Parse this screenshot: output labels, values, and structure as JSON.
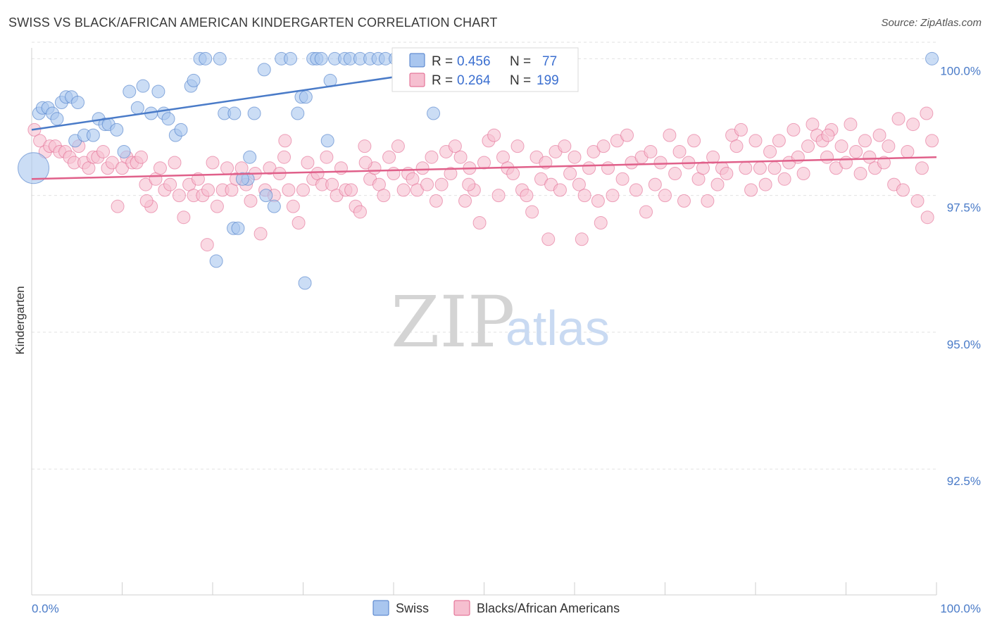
{
  "header": {
    "title": "SWISS VS BLACK/AFRICAN AMERICAN KINDERGARTEN CORRELATION CHART",
    "source": "Source: ZipAtlas.com"
  },
  "watermark": {
    "zip": "ZIP",
    "atlas": "atlas"
  },
  "legend": {
    "swiss": {
      "r_label": "R = ",
      "r_value": "0.456",
      "n_label": "N = ",
      "n_value": "77"
    },
    "black": {
      "r_label": "R = ",
      "r_value": "0.264",
      "n_label": "N = ",
      "n_value": "199"
    }
  },
  "bottom_legend": [
    "Swiss",
    "Blacks/African Americans"
  ],
  "chart_data": {
    "type": "scatter",
    "title": "SWISS VS BLACK/AFRICAN AMERICAN KINDERGARTEN CORRELATION CHART",
    "xlabel": "",
    "ylabel": "Kindergarten",
    "xlim": [
      0,
      100
    ],
    "ylim": [
      90.2,
      100.3
    ],
    "x_tick_labels": [
      "0.0%",
      "100.0%"
    ],
    "y_ticks": [
      100.0,
      97.5,
      95.0,
      92.5
    ],
    "y_tick_labels": [
      "100.0%",
      "97.5%",
      "95.0%",
      "92.5%"
    ],
    "grid": true,
    "colors": {
      "swiss": "#4a7bc8",
      "black": "#e0608a",
      "swiss_fill": "#a9c6ef",
      "black_fill": "#f6bfd0"
    },
    "series": [
      {
        "name": "Swiss",
        "trend": {
          "x": [
            0,
            54
          ],
          "y": [
            98.7,
            100.0
          ]
        },
        "points": [
          [
            0.8,
            99.0
          ],
          [
            1.2,
            99.1
          ],
          [
            1.8,
            99.1
          ],
          [
            2.3,
            99.0
          ],
          [
            2.8,
            98.9
          ],
          [
            3.3,
            99.2
          ],
          [
            3.8,
            99.3
          ],
          [
            4.4,
            99.3
          ],
          [
            5.1,
            99.2
          ],
          [
            4.8,
            98.5
          ],
          [
            5.8,
            98.6
          ],
          [
            6.8,
            98.6
          ],
          [
            7.4,
            98.9
          ],
          [
            8.1,
            98.8
          ],
          [
            8.5,
            98.8
          ],
          [
            9.4,
            98.7
          ],
          [
            10.8,
            99.4
          ],
          [
            11.7,
            99.1
          ],
          [
            10.2,
            98.3
          ],
          [
            12.3,
            99.5
          ],
          [
            13.2,
            99.0
          ],
          [
            14.0,
            99.4
          ],
          [
            14.6,
            99.0
          ],
          [
            15.1,
            98.9
          ],
          [
            15.9,
            98.6
          ],
          [
            16.5,
            98.7
          ],
          [
            17.6,
            99.5
          ],
          [
            17.9,
            99.6
          ],
          [
            18.6,
            100.0
          ],
          [
            19.2,
            100.0
          ],
          [
            20.8,
            100.0
          ],
          [
            21.3,
            99.0
          ],
          [
            22.4,
            99.0
          ],
          [
            24.1,
            98.2
          ],
          [
            23.9,
            97.8
          ],
          [
            23.3,
            97.8
          ],
          [
            22.3,
            96.9
          ],
          [
            20.4,
            96.3
          ],
          [
            24.6,
            99.0
          ],
          [
            25.7,
            99.8
          ],
          [
            25.9,
            97.5
          ],
          [
            26.8,
            97.3
          ],
          [
            27.6,
            100.0
          ],
          [
            28.6,
            100.0
          ],
          [
            29.4,
            99.0
          ],
          [
            29.8,
            99.3
          ],
          [
            30.3,
            99.3
          ],
          [
            31.1,
            100.0
          ],
          [
            31.5,
            100.0
          ],
          [
            32.0,
            100.0
          ],
          [
            32.7,
            98.5
          ],
          [
            33.5,
            100.0
          ],
          [
            34.6,
            100.0
          ],
          [
            35.2,
            100.0
          ],
          [
            36.3,
            100.0
          ],
          [
            37.4,
            100.0
          ],
          [
            38.3,
            100.0
          ],
          [
            39.1,
            100.0
          ],
          [
            40.2,
            100.0
          ],
          [
            41.2,
            100.0
          ],
          [
            42.0,
            100.0
          ],
          [
            43.1,
            100.0
          ],
          [
            44.4,
            99.0
          ],
          [
            45.2,
            100.0
          ],
          [
            46.3,
            100.0
          ],
          [
            47.6,
            100.0
          ],
          [
            49.3,
            100.0
          ],
          [
            51.2,
            100.0
          ],
          [
            52.6,
            100.0
          ],
          [
            53.4,
            100.0
          ],
          [
            54.0,
            100.0
          ],
          [
            30.2,
            95.9
          ],
          [
            22.8,
            96.9
          ],
          [
            44.9,
            100.0
          ],
          [
            33.0,
            99.6
          ],
          [
            0.2,
            98.0
          ],
          [
            99.5,
            100.0
          ]
        ]
      },
      {
        "name": "Blacks/African Americans",
        "trend": {
          "x": [
            0,
            100
          ],
          "y": [
            97.8,
            98.2
          ]
        },
        "points": [
          [
            0.3,
            98.7
          ],
          [
            0.9,
            98.5
          ],
          [
            1.5,
            98.3
          ],
          [
            2.0,
            98.4
          ],
          [
            2.6,
            98.4
          ],
          [
            3.1,
            98.3
          ],
          [
            3.7,
            98.3
          ],
          [
            4.2,
            98.2
          ],
          [
            4.7,
            98.1
          ],
          [
            5.2,
            98.4
          ],
          [
            5.8,
            98.1
          ],
          [
            6.3,
            98.0
          ],
          [
            6.8,
            98.2
          ],
          [
            7.3,
            98.2
          ],
          [
            7.9,
            98.3
          ],
          [
            8.4,
            98.0
          ],
          [
            8.9,
            98.1
          ],
          [
            9.5,
            97.3
          ],
          [
            10.0,
            98.0
          ],
          [
            10.5,
            98.2
          ],
          [
            11.1,
            98.1
          ],
          [
            11.6,
            98.1
          ],
          [
            12.1,
            98.2
          ],
          [
            12.6,
            97.7
          ],
          [
            13.2,
            97.3
          ],
          [
            13.7,
            97.8
          ],
          [
            14.2,
            98.0
          ],
          [
            14.7,
            97.6
          ],
          [
            15.3,
            97.7
          ],
          [
            15.8,
            98.1
          ],
          [
            16.3,
            97.5
          ],
          [
            16.8,
            97.1
          ],
          [
            17.4,
            97.7
          ],
          [
            17.9,
            97.5
          ],
          [
            18.4,
            97.8
          ],
          [
            18.9,
            97.5
          ],
          [
            19.5,
            97.6
          ],
          [
            20.0,
            98.1
          ],
          [
            20.5,
            97.3
          ],
          [
            21.1,
            97.6
          ],
          [
            21.6,
            98.0
          ],
          [
            22.1,
            97.6
          ],
          [
            22.6,
            97.8
          ],
          [
            23.2,
            98.0
          ],
          [
            23.7,
            97.7
          ],
          [
            24.2,
            97.4
          ],
          [
            24.7,
            97.9
          ],
          [
            25.3,
            96.8
          ],
          [
            25.8,
            97.6
          ],
          [
            26.3,
            98.0
          ],
          [
            26.8,
            97.5
          ],
          [
            27.4,
            97.9
          ],
          [
            27.9,
            98.2
          ],
          [
            28.4,
            97.6
          ],
          [
            28.9,
            97.3
          ],
          [
            29.5,
            97.0
          ],
          [
            30.0,
            97.6
          ],
          [
            30.5,
            98.1
          ],
          [
            31.1,
            97.8
          ],
          [
            31.6,
            97.9
          ],
          [
            32.1,
            97.7
          ],
          [
            32.6,
            98.2
          ],
          [
            33.2,
            97.7
          ],
          [
            33.7,
            97.5
          ],
          [
            34.2,
            98.0
          ],
          [
            34.7,
            97.6
          ],
          [
            35.3,
            97.6
          ],
          [
            35.8,
            97.3
          ],
          [
            36.3,
            97.2
          ],
          [
            36.8,
            98.4
          ],
          [
            37.4,
            97.8
          ],
          [
            37.9,
            98.0
          ],
          [
            38.4,
            97.7
          ],
          [
            38.9,
            97.5
          ],
          [
            39.5,
            98.2
          ],
          [
            40.0,
            97.9
          ],
          [
            40.5,
            98.4
          ],
          [
            41.1,
            97.6
          ],
          [
            41.6,
            97.9
          ],
          [
            42.1,
            97.8
          ],
          [
            42.6,
            97.6
          ],
          [
            43.2,
            98.0
          ],
          [
            43.7,
            97.7
          ],
          [
            44.2,
            98.2
          ],
          [
            44.7,
            97.4
          ],
          [
            45.3,
            97.7
          ],
          [
            45.8,
            98.3
          ],
          [
            46.3,
            97.9
          ],
          [
            46.8,
            98.4
          ],
          [
            47.4,
            98.2
          ],
          [
            47.9,
            97.4
          ],
          [
            48.4,
            98.0
          ],
          [
            48.9,
            97.6
          ],
          [
            49.5,
            97.0
          ],
          [
            50.0,
            98.1
          ],
          [
            50.5,
            98.5
          ],
          [
            51.1,
            98.6
          ],
          [
            51.6,
            97.5
          ],
          [
            52.1,
            98.2
          ],
          [
            52.6,
            98.0
          ],
          [
            53.2,
            97.9
          ],
          [
            53.7,
            98.4
          ],
          [
            54.2,
            97.6
          ],
          [
            54.7,
            97.5
          ],
          [
            55.3,
            97.2
          ],
          [
            55.8,
            98.2
          ],
          [
            56.3,
            97.8
          ],
          [
            56.8,
            98.1
          ],
          [
            57.4,
            97.7
          ],
          [
            57.9,
            98.3
          ],
          [
            58.4,
            97.6
          ],
          [
            58.9,
            98.4
          ],
          [
            59.5,
            97.9
          ],
          [
            60.0,
            98.2
          ],
          [
            60.5,
            97.7
          ],
          [
            61.1,
            97.5
          ],
          [
            61.6,
            98.0
          ],
          [
            62.1,
            98.3
          ],
          [
            62.6,
            97.4
          ],
          [
            63.2,
            98.4
          ],
          [
            63.7,
            98.0
          ],
          [
            64.2,
            97.5
          ],
          [
            64.7,
            98.5
          ],
          [
            65.3,
            97.8
          ],
          [
            65.8,
            98.6
          ],
          [
            66.3,
            98.1
          ],
          [
            66.8,
            97.6
          ],
          [
            67.4,
            98.2
          ],
          [
            67.9,
            97.2
          ],
          [
            68.4,
            98.3
          ],
          [
            68.9,
            97.7
          ],
          [
            69.5,
            98.1
          ],
          [
            70.0,
            97.5
          ],
          [
            70.5,
            98.6
          ],
          [
            71.1,
            97.9
          ],
          [
            71.6,
            98.3
          ],
          [
            72.1,
            97.4
          ],
          [
            72.6,
            98.1
          ],
          [
            73.2,
            98.5
          ],
          [
            73.7,
            97.8
          ],
          [
            74.2,
            98.0
          ],
          [
            74.7,
            97.4
          ],
          [
            75.3,
            98.2
          ],
          [
            75.8,
            97.7
          ],
          [
            76.3,
            98.0
          ],
          [
            76.8,
            97.9
          ],
          [
            77.4,
            98.6
          ],
          [
            77.9,
            98.4
          ],
          [
            78.4,
            98.7
          ],
          [
            78.9,
            98.0
          ],
          [
            79.5,
            97.6
          ],
          [
            80.0,
            98.5
          ],
          [
            80.5,
            98.0
          ],
          [
            81.1,
            97.7
          ],
          [
            81.6,
            98.3
          ],
          [
            82.1,
            98.0
          ],
          [
            82.6,
            98.5
          ],
          [
            83.2,
            97.8
          ],
          [
            83.7,
            98.1
          ],
          [
            84.2,
            98.7
          ],
          [
            84.7,
            98.2
          ],
          [
            85.3,
            97.9
          ],
          [
            85.8,
            98.4
          ],
          [
            86.3,
            98.8
          ],
          [
            86.8,
            98.6
          ],
          [
            87.4,
            98.5
          ],
          [
            87.9,
            98.2
          ],
          [
            88.4,
            98.7
          ],
          [
            88.9,
            98.0
          ],
          [
            89.5,
            98.4
          ],
          [
            90.0,
            98.1
          ],
          [
            90.5,
            98.8
          ],
          [
            91.1,
            98.3
          ],
          [
            91.6,
            97.9
          ],
          [
            92.1,
            98.5
          ],
          [
            92.6,
            98.2
          ],
          [
            93.2,
            98.0
          ],
          [
            93.7,
            98.6
          ],
          [
            94.2,
            98.1
          ],
          [
            94.7,
            98.4
          ],
          [
            95.3,
            97.7
          ],
          [
            95.8,
            98.9
          ],
          [
            96.3,
            97.6
          ],
          [
            96.8,
            98.3
          ],
          [
            97.4,
            98.8
          ],
          [
            97.9,
            97.4
          ],
          [
            98.4,
            98.0
          ],
          [
            98.9,
            99.0
          ],
          [
            99.5,
            98.5
          ],
          [
            99.0,
            97.1
          ],
          [
            19.4,
            96.6
          ],
          [
            60.8,
            96.7
          ],
          [
            62.9,
            97.0
          ],
          [
            36.9,
            98.1
          ],
          [
            48.3,
            97.7
          ],
          [
            28.0,
            98.5
          ],
          [
            57.1,
            96.7
          ],
          [
            88.0,
            98.6
          ],
          [
            12.7,
            97.4
          ]
        ]
      }
    ]
  }
}
